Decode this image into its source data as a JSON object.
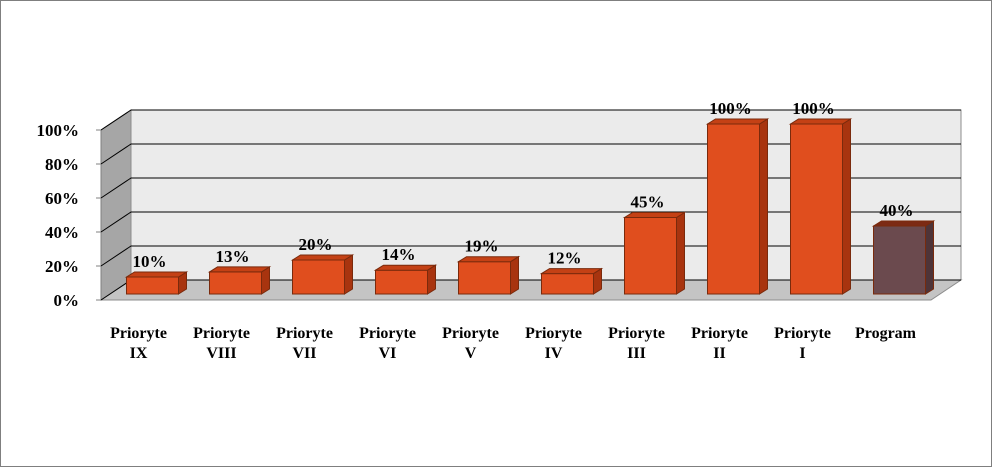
{
  "chart_data": {
    "type": "bar",
    "style": "3d-column",
    "categories": [
      [
        "Prioryte",
        "IX"
      ],
      [
        "Prioryte",
        "VIII"
      ],
      [
        "Prioryte",
        "VII"
      ],
      [
        "Prioryte",
        "VI"
      ],
      [
        "Prioryte",
        "V"
      ],
      [
        "Prioryte",
        "IV"
      ],
      [
        "Prioryte",
        "III"
      ],
      [
        "Prioryte",
        "II"
      ],
      [
        "Prioryte",
        "I"
      ],
      [
        "Program",
        ""
      ]
    ],
    "values": [
      10,
      13,
      20,
      14,
      19,
      12,
      45,
      100,
      100,
      40
    ],
    "data_labels": [
      "10%",
      "13%",
      "20%",
      "14%",
      "19%",
      "12%",
      "45%",
      "100%",
      "100%",
      "40%"
    ],
    "ytick_labels": [
      "0%",
      "20%",
      "40%",
      "60%",
      "80%",
      "100%"
    ],
    "ylim": [
      0,
      100
    ],
    "title": "",
    "xlabel": "",
    "ylabel": "",
    "grid": true,
    "legend": false,
    "colors": {
      "bar": "#e04e1e",
      "bar_side": "#a8340f",
      "bar_top": "#c44115",
      "bar_highlight": "#6b4a4e",
      "bar_highlight_side": "#4e3438",
      "bar_highlight_top": "#7c2a14",
      "wall": "#ebebeb",
      "side_wall": "#a6a6a6",
      "floor": "#c4c4c4",
      "grid": "#000000"
    }
  }
}
